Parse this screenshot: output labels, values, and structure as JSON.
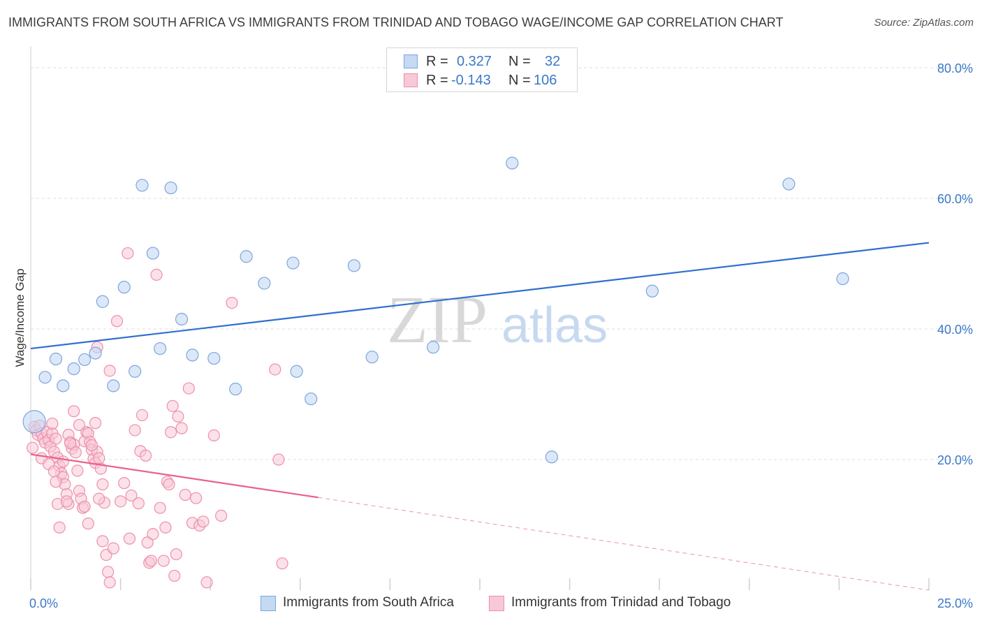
{
  "header": {
    "title": "IMMIGRANTS FROM SOUTH AFRICA VS IMMIGRANTS FROM TRINIDAD AND TOBAGO WAGE/INCOME GAP CORRELATION CHART",
    "source": "Source: ZipAtlas.com"
  },
  "watermark": {
    "zip": "ZIP",
    "atlas": "atlas"
  },
  "legend": {
    "rows": [
      {
        "r_label": "R =",
        "r_value": "0.327",
        "n_label": "N =",
        "n_value": "32"
      },
      {
        "r_label": "R =",
        "r_value": "-0.143",
        "n_label": "N =",
        "n_value": "106"
      }
    ]
  },
  "bottom_legend": {
    "series_a": "Immigrants from South Africa",
    "series_b": "Immigrants from Trinidad and Tobago"
  },
  "colors": {
    "blue_fill": "#c5d9f2",
    "blue_stroke": "#7aa6e0",
    "blue_line": "#2f6fce",
    "pink_fill": "#f8c8d6",
    "pink_stroke": "#ee8fab",
    "pink_line": "#e8628e",
    "axis_text": "#3a78c9",
    "grid": "#dcdcdc"
  },
  "chart_data": {
    "type": "scatter",
    "title": "IMMIGRANTS FROM SOUTH AFRICA VS IMMIGRANTS FROM TRINIDAD AND TOBAGO WAGE/INCOME GAP CORRELATION CHART",
    "xlabel": "",
    "ylabel": "Wage/Income Gap",
    "xlim": [
      0,
      25
    ],
    "ylim": [
      0,
      80
    ],
    "x_tick_labels": [
      "0.0%",
      "25.0%"
    ],
    "y_tick_labels": [
      "20.0%",
      "40.0%",
      "60.0%",
      "80.0%"
    ],
    "y_ticks": [
      20,
      40,
      60,
      80
    ],
    "grid": true,
    "legend_position": "top-center",
    "series": [
      {
        "name": "Immigrants from South Africa",
        "color": "#7aa6e0",
        "trend": {
          "x": [
            0,
            25
          ],
          "y": [
            37.0,
            53.2
          ],
          "style": "solid"
        },
        "points": [
          [
            0.1,
            25.8,
            "large"
          ],
          [
            0.4,
            32.6
          ],
          [
            0.7,
            35.4
          ],
          [
            0.9,
            31.3
          ],
          [
            1.2,
            33.9
          ],
          [
            1.5,
            35.3
          ],
          [
            1.8,
            36.3
          ],
          [
            2.0,
            44.2
          ],
          [
            2.3,
            31.3
          ],
          [
            2.9,
            33.5
          ],
          [
            2.6,
            46.4
          ],
          [
            3.1,
            62.0
          ],
          [
            3.4,
            51.6
          ],
          [
            3.6,
            37.0
          ],
          [
            3.9,
            61.6
          ],
          [
            4.2,
            41.5
          ],
          [
            4.5,
            36.0
          ],
          [
            5.1,
            35.5
          ],
          [
            5.7,
            30.8
          ],
          [
            6.0,
            51.1
          ],
          [
            6.5,
            47.0
          ],
          [
            7.3,
            50.1
          ],
          [
            7.4,
            33.5
          ],
          [
            7.8,
            29.3
          ],
          [
            9.0,
            49.7
          ],
          [
            9.5,
            35.7
          ],
          [
            11.2,
            37.2
          ],
          [
            13.4,
            65.4
          ],
          [
            14.5,
            20.4
          ],
          [
            17.3,
            45.8
          ],
          [
            21.1,
            62.2
          ],
          [
            22.6,
            47.7
          ]
        ]
      },
      {
        "name": "Immigrants from Trinidad and Tobago",
        "color": "#ee8fab",
        "trend": {
          "x": [
            0,
            8.0,
            25
          ],
          "y": [
            20.8,
            14.2,
            0.0
          ],
          "solid_until": 8.0,
          "style": "solid-then-dashed"
        },
        "points": [
          [
            0.1,
            25.0
          ],
          [
            0.15,
            24.5
          ],
          [
            0.2,
            23.8
          ],
          [
            0.25,
            25.2
          ],
          [
            0.3,
            24.0
          ],
          [
            0.35,
            23.2
          ],
          [
            0.4,
            22.6
          ],
          [
            0.45,
            24.2
          ],
          [
            0.5,
            23.0
          ],
          [
            0.55,
            22.0
          ],
          [
            0.6,
            24.0
          ],
          [
            0.65,
            21.2
          ],
          [
            0.7,
            23.2
          ],
          [
            0.75,
            20.3
          ],
          [
            0.8,
            19.0
          ],
          [
            0.85,
            17.9
          ],
          [
            0.9,
            17.3
          ],
          [
            0.95,
            16.2
          ],
          [
            1.0,
            14.7
          ],
          [
            1.05,
            13.2
          ],
          [
            1.1,
            22.7
          ],
          [
            1.15,
            21.7
          ],
          [
            1.2,
            22.3
          ],
          [
            1.25,
            21.1
          ],
          [
            1.3,
            18.3
          ],
          [
            1.35,
            15.2
          ],
          [
            1.4,
            14.0
          ],
          [
            1.45,
            12.6
          ],
          [
            1.5,
            22.8
          ],
          [
            1.55,
            24.2
          ],
          [
            1.6,
            24.0
          ],
          [
            1.65,
            22.7
          ],
          [
            1.7,
            21.5
          ],
          [
            1.75,
            20.1
          ],
          [
            1.8,
            19.5
          ],
          [
            1.85,
            21.2
          ],
          [
            1.9,
            20.2
          ],
          [
            1.95,
            18.6
          ],
          [
            2.0,
            16.2
          ],
          [
            2.05,
            13.4
          ],
          [
            0.05,
            21.8
          ],
          [
            0.3,
            20.2
          ],
          [
            0.5,
            19.3
          ],
          [
            0.65,
            18.2
          ],
          [
            0.7,
            16.6
          ],
          [
            0.75,
            13.2
          ],
          [
            0.8,
            9.6
          ],
          [
            1.0,
            13.6
          ],
          [
            1.05,
            23.8
          ],
          [
            1.2,
            27.4
          ],
          [
            1.35,
            25.3
          ],
          [
            1.5,
            12.8
          ],
          [
            1.6,
            10.2
          ],
          [
            1.7,
            22.2
          ],
          [
            1.8,
            25.6
          ],
          [
            1.85,
            37.2
          ],
          [
            1.9,
            14.0
          ],
          [
            2.0,
            7.5
          ],
          [
            2.1,
            5.4
          ],
          [
            2.15,
            2.8
          ],
          [
            2.2,
            1.2
          ],
          [
            2.3,
            6.4
          ],
          [
            2.4,
            41.2
          ],
          [
            2.5,
            13.6
          ],
          [
            2.6,
            16.4
          ],
          [
            2.7,
            51.6
          ],
          [
            2.75,
            7.9
          ],
          [
            2.8,
            14.5
          ],
          [
            2.9,
            24.5
          ],
          [
            3.0,
            13.3
          ],
          [
            3.05,
            21.3
          ],
          [
            3.1,
            26.8
          ],
          [
            3.2,
            20.6
          ],
          [
            3.25,
            7.3
          ],
          [
            3.3,
            4.2
          ],
          [
            3.35,
            4.5
          ],
          [
            3.4,
            8.6
          ],
          [
            3.5,
            48.3
          ],
          [
            3.6,
            12.6
          ],
          [
            3.7,
            4.5
          ],
          [
            3.75,
            9.6
          ],
          [
            3.8,
            16.6
          ],
          [
            3.85,
            16.2
          ],
          [
            3.9,
            24.2
          ],
          [
            3.95,
            28.2
          ],
          [
            4.0,
            2.2
          ],
          [
            4.05,
            5.5
          ],
          [
            4.1,
            26.6
          ],
          [
            4.2,
            24.8
          ],
          [
            4.3,
            14.6
          ],
          [
            4.4,
            30.9
          ],
          [
            4.5,
            10.3
          ],
          [
            4.6,
            14.1
          ],
          [
            4.7,
            9.9
          ],
          [
            4.8,
            10.5
          ],
          [
            4.9,
            1.2
          ],
          [
            5.1,
            23.7
          ],
          [
            5.3,
            11.4
          ],
          [
            5.6,
            44.0
          ],
          [
            6.8,
            33.8
          ],
          [
            6.9,
            20.0
          ],
          [
            7.0,
            4.1
          ],
          [
            0.6,
            25.5
          ],
          [
            1.1,
            22.5
          ],
          [
            2.2,
            33.6
          ],
          [
            0.9,
            19.7
          ]
        ]
      }
    ]
  }
}
